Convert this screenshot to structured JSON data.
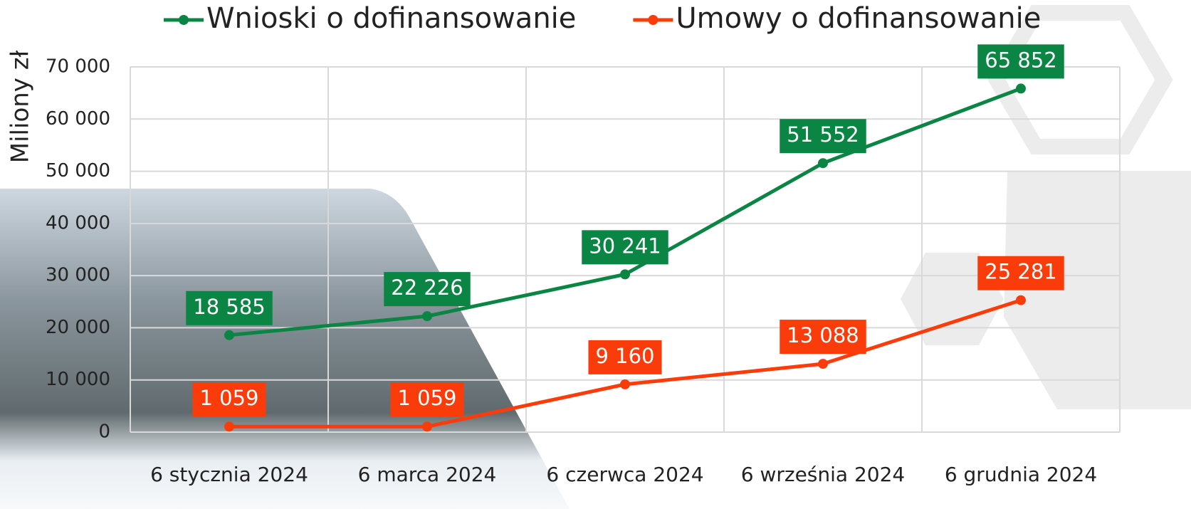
{
  "chart_data": {
    "type": "line",
    "y_label": "Miliony zł",
    "categories": [
      "6 stycznia 2024",
      "6 marca 2024",
      "6 czerwca 2024",
      "6 września 2024",
      "6 grudnia 2024"
    ],
    "series": [
      {
        "name": "Wnioski o dofinansowanie",
        "color": "#0b8543",
        "values": [
          18585,
          22226,
          30241,
          51552,
          65852
        ],
        "value_labels": [
          "18 585",
          "22 226",
          "30 241",
          "51 552",
          "65 852"
        ]
      },
      {
        "name": "Umowy o dofinansowanie",
        "color": "#fa3c0a",
        "values": [
          1059,
          1059,
          9160,
          13088,
          25281
        ],
        "value_labels": [
          "1 059",
          "1 059",
          "9 160",
          "13 088",
          "25 281"
        ]
      }
    ],
    "ylim": [
      0,
      70000
    ],
    "yticks": [
      0,
      {
        "value": 10000,
        "label": "10 000"
      },
      {
        "value": 20000,
        "label": "20 000"
      },
      {
        "value": 30000,
        "label": "30 000"
      },
      {
        "value": 40000,
        "label": "40 000"
      },
      {
        "value": 50000,
        "label": "50 000"
      },
      {
        "value": 60000,
        "label": "60 000"
      },
      {
        "value": 70000,
        "label": "70 000"
      }
    ],
    "grid": true,
    "legend": "top"
  }
}
